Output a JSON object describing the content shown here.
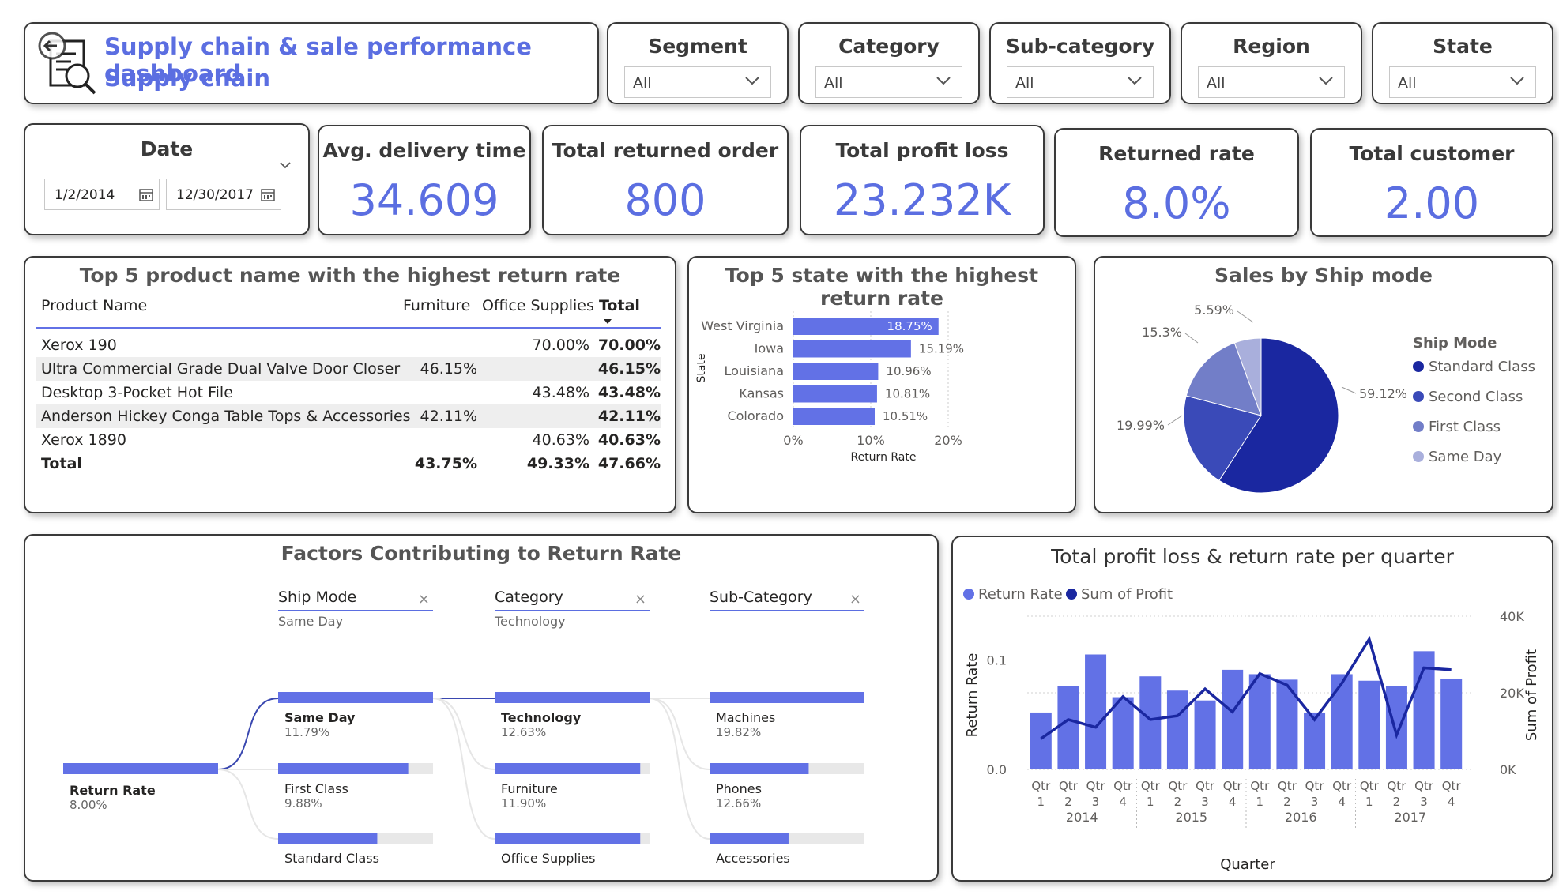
{
  "header": {
    "title_line1": "Supply chain & sale performance dashboard",
    "title_line2": "Supply chain"
  },
  "slicers": [
    {
      "label": "Segment",
      "value": "All"
    },
    {
      "label": "Category",
      "value": "All"
    },
    {
      "label": "Sub-category",
      "value": "All"
    },
    {
      "label": "Region",
      "value": "All"
    },
    {
      "label": "State",
      "value": "All"
    }
  ],
  "date_slicer": {
    "label": "Date",
    "start": "1/2/2014",
    "end": "12/30/2017"
  },
  "kpis": [
    {
      "title": "Avg. delivery time",
      "value": "34.609"
    },
    {
      "title": "Total returned order",
      "value": "800"
    },
    {
      "title": "Total profit loss",
      "value": "23.232K"
    },
    {
      "title": "Returned rate",
      "value": "8.0%"
    },
    {
      "title": "Total customer",
      "value": "2.00"
    }
  ],
  "top_products": {
    "title": "Top 5 product name with the highest return rate",
    "columns": [
      "Product Name",
      "Furniture",
      "Office Supplies",
      "Total"
    ],
    "rows": [
      {
        "name": "Xerox 190",
        "furniture": "",
        "office": "70.00%",
        "total": "70.00%"
      },
      {
        "name": "Ultra Commercial Grade Dual Valve Door Closer",
        "furniture": "46.15%",
        "office": "",
        "total": "46.15%"
      },
      {
        "name": "Desktop 3-Pocket Hot File",
        "furniture": "",
        "office": "43.48%",
        "total": "43.48%"
      },
      {
        "name": "Anderson Hickey Conga Table Tops & Accessories",
        "furniture": "42.11%",
        "office": "",
        "total": "42.11%"
      },
      {
        "name": "Xerox 1890",
        "furniture": "",
        "office": "40.63%",
        "total": "40.63%"
      }
    ],
    "total_row": {
      "name": "Total",
      "furniture": "43.75%",
      "office": "49.33%",
      "total": "47.66%"
    }
  },
  "chart_data": [
    {
      "type": "bar",
      "title": "Top 5 state with the highest return rate",
      "orientation": "horizontal",
      "categories": [
        "West Virginia",
        "Iowa",
        "Louisiana",
        "Kansas",
        "Colorado"
      ],
      "values": [
        18.75,
        15.19,
        10.96,
        10.81,
        10.51
      ],
      "data_labels": [
        "18.75%",
        "15.19%",
        "10.96%",
        "10.81%",
        "10.51%"
      ],
      "xlabel": "Return Rate",
      "ylabel": "State",
      "xticks": [
        "0%",
        "10%",
        "20%"
      ],
      "xlim": [
        0,
        20
      ],
      "grid": true,
      "color": "#6271e6"
    },
    {
      "type": "pie",
      "title": "Sales by Ship mode",
      "legend_title": "Ship Mode",
      "legend_position": "right",
      "slices": [
        {
          "name": "Standard Class",
          "value": 59.12,
          "label": "59.12%",
          "color": "#1a27a0"
        },
        {
          "name": "Second Class",
          "value": 19.99,
          "label": "19.99%",
          "color": "#3a4ab8"
        },
        {
          "name": "First Class",
          "value": 15.3,
          "label": "15.3%",
          "color": "#727ec8"
        },
        {
          "name": "Same Day",
          "value": 5.59,
          "label": "5.59%",
          "color": "#a9afdc"
        }
      ]
    },
    {
      "type": "bar",
      "title": "Total profit loss & return rate per quarter",
      "combo": "bar-line",
      "legend": [
        "Return Rate",
        "Sum of Profit"
      ],
      "legend_position": "top-left",
      "xlabel": "Quarter",
      "ylabel": "Return Rate",
      "y2label": "Sum of Profit",
      "categories": [
        "Qtr 1 2014",
        "Qtr 2 2014",
        "Qtr 3 2014",
        "Qtr 4 2014",
        "Qtr 1 2015",
        "Qtr 2 2015",
        "Qtr 3 2015",
        "Qtr 4 2015",
        "Qtr 1 2016",
        "Qtr 2 2016",
        "Qtr 3 2016",
        "Qtr 4 2016",
        "Qtr 1 2017",
        "Qtr 2 2017",
        "Qtr 3 2017",
        "Qtr 4 2017"
      ],
      "quarter_labels": [
        "Qtr",
        "Qtr",
        "Qtr",
        "Qtr",
        "Qtr",
        "Qtr",
        "Qtr",
        "Qtr",
        "Qtr",
        "Qtr",
        "Qtr",
        "Qtr",
        "Qtr",
        "Qtr",
        "Qtr",
        "Qtr"
      ],
      "quarter_nums": [
        "1",
        "2",
        "3",
        "4",
        "1",
        "2",
        "3",
        "4",
        "1",
        "2",
        "3",
        "4",
        "1",
        "2",
        "3",
        "4"
      ],
      "years": [
        "2014",
        "2015",
        "2016",
        "2017"
      ],
      "series": [
        {
          "name": "Return Rate",
          "type": "bar",
          "axis": "left",
          "color": "#6271e6",
          "values": [
            0.052,
            0.076,
            0.105,
            0.066,
            0.085,
            0.072,
            0.063,
            0.091,
            0.087,
            0.082,
            0.052,
            0.087,
            0.081,
            0.076,
            0.108,
            0.083
          ]
        },
        {
          "name": "Sum of Profit",
          "type": "line",
          "axis": "right",
          "color": "#1a27a0",
          "values": [
            8000,
            13000,
            11000,
            19000,
            13000,
            14000,
            21000,
            15000,
            25000,
            22000,
            13000,
            22500,
            34000,
            9000,
            26500,
            26000
          ]
        }
      ],
      "ylim": [
        0,
        0.14
      ],
      "yticks": [
        "0.0",
        "0.1"
      ],
      "y2lim": [
        0,
        40000
      ],
      "y2ticks": [
        "0K",
        "20K",
        "40K"
      ]
    }
  ],
  "decomposition": {
    "title": "Factors Contributing to Return Rate",
    "headers": [
      {
        "label": "Ship Mode",
        "selected": "Same Day"
      },
      {
        "label": "Category",
        "selected": "Technology"
      },
      {
        "label": "Sub-Category",
        "selected": ""
      }
    ],
    "root": {
      "label": "Return Rate",
      "value": "8.00%",
      "fraction": 1.0
    },
    "levels": [
      [
        {
          "label": "Same Day",
          "value": "11.79%",
          "fraction": 1.0,
          "bold": true
        },
        {
          "label": "First Class",
          "value": "9.88%",
          "fraction": 0.84,
          "bold": false
        },
        {
          "label": "Standard Class",
          "value": "",
          "fraction": 0.64,
          "bold": false
        }
      ],
      [
        {
          "label": "Technology",
          "value": "12.63%",
          "fraction": 1.0,
          "bold": true
        },
        {
          "label": "Furniture",
          "value": "11.90%",
          "fraction": 0.94,
          "bold": false
        },
        {
          "label": "Office Supplies",
          "value": "",
          "fraction": 0.94,
          "bold": false
        }
      ],
      [
        {
          "label": "Machines",
          "value": "19.82%",
          "fraction": 1.0,
          "bold": false
        },
        {
          "label": "Phones",
          "value": "12.66%",
          "fraction": 0.64,
          "bold": false
        },
        {
          "label": "Accessories",
          "value": "",
          "fraction": 0.51,
          "bold": false
        }
      ]
    ]
  }
}
